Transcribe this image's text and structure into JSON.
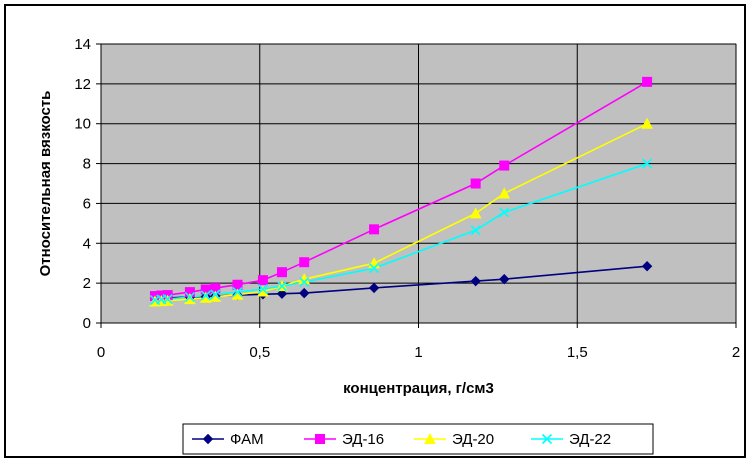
{
  "chart_data": {
    "type": "line",
    "title": "",
    "xlabel": "концентрация, г/см3",
    "ylabel": "Относительная вязкость",
    "xlim": [
      0,
      2
    ],
    "ylim": [
      0,
      14
    ],
    "x_ticks": [
      "0",
      "0,5",
      "1",
      "1,5",
      "2"
    ],
    "y_ticks": [
      "0",
      "2",
      "4",
      "6",
      "8",
      "10",
      "12",
      "14"
    ],
    "grid": true,
    "legend_position": "bottom",
    "plot_background": "#c0c0c0",
    "series": [
      {
        "name": "ФАМ",
        "color": "#000080",
        "marker": "diamond",
        "points": [
          [
            0.17,
            1.25
          ],
          [
            0.19,
            1.25
          ],
          [
            0.21,
            1.26
          ],
          [
            0.28,
            1.3
          ],
          [
            0.33,
            1.32
          ],
          [
            0.36,
            1.35
          ],
          [
            0.43,
            1.4
          ],
          [
            0.51,
            1.44
          ],
          [
            0.57,
            1.47
          ],
          [
            0.64,
            1.5
          ],
          [
            0.86,
            1.76
          ],
          [
            1.18,
            2.1
          ],
          [
            1.27,
            2.2
          ],
          [
            1.72,
            2.85
          ]
        ]
      },
      {
        "name": "ЭД-16",
        "color": "#ff00ff",
        "marker": "square",
        "points": [
          [
            0.17,
            1.35
          ],
          [
            0.19,
            1.38
          ],
          [
            0.21,
            1.4
          ],
          [
            0.28,
            1.55
          ],
          [
            0.33,
            1.68
          ],
          [
            0.36,
            1.75
          ],
          [
            0.43,
            1.92
          ],
          [
            0.51,
            2.15
          ],
          [
            0.57,
            2.55
          ],
          [
            0.64,
            3.05
          ],
          [
            0.86,
            4.7
          ],
          [
            1.18,
            7.0
          ],
          [
            1.27,
            7.9
          ],
          [
            1.72,
            12.1
          ]
        ]
      },
      {
        "name": "ЭД-20",
        "color": "#ffff00",
        "marker": "triangle",
        "points": [
          [
            0.17,
            1.08
          ],
          [
            0.19,
            1.1
          ],
          [
            0.21,
            1.12
          ],
          [
            0.28,
            1.2
          ],
          [
            0.33,
            1.27
          ],
          [
            0.36,
            1.32
          ],
          [
            0.43,
            1.42
          ],
          [
            0.51,
            1.58
          ],
          [
            0.57,
            1.85
          ],
          [
            0.64,
            2.2
          ],
          [
            0.86,
            3.0
          ],
          [
            1.18,
            5.5
          ],
          [
            1.27,
            6.5
          ],
          [
            1.72,
            10.0
          ]
        ]
      },
      {
        "name": "ЭД-22",
        "color": "#00ffff",
        "marker": "x",
        "points": [
          [
            0.17,
            1.15
          ],
          [
            0.19,
            1.18
          ],
          [
            0.21,
            1.2
          ],
          [
            0.28,
            1.3
          ],
          [
            0.33,
            1.38
          ],
          [
            0.36,
            1.43
          ],
          [
            0.43,
            1.55
          ],
          [
            0.51,
            1.7
          ],
          [
            0.57,
            1.85
          ],
          [
            0.64,
            2.05
          ],
          [
            0.86,
            2.75
          ],
          [
            1.18,
            4.65
          ],
          [
            1.27,
            5.55
          ],
          [
            1.72,
            8.0
          ]
        ]
      }
    ]
  }
}
